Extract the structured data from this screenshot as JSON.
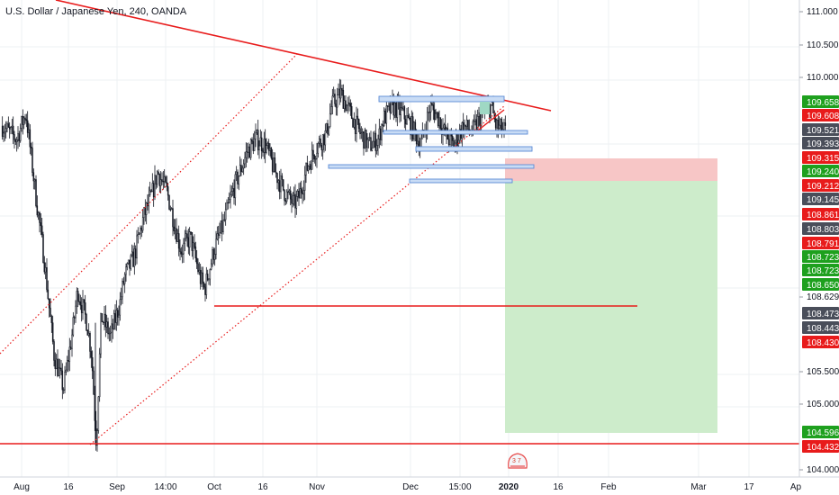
{
  "symbol_title": "U.S. Dollar / Japanese Yen, 240, OANDA",
  "logo_text": "3 7",
  "colors": {
    "bull": "#ffffff",
    "bear": "#131722",
    "wick": "#131722",
    "trend_red": "#e81b1b",
    "range_box": "#5b8bd6",
    "range_box_fill": "#c9dcf5",
    "stop_fill": "#f7c6c6",
    "target_fill": "#cdeccb",
    "badge_green": "#1ea01e",
    "badge_red": "#e81b1b",
    "badge_dark": "#4a4e5a",
    "grid": "#eef0f3"
  },
  "chart_data": {
    "type": "candlestick",
    "instrument": "USD/JPY",
    "timeframe": "240",
    "broker": "OANDA",
    "x_ticks": [
      "Aug",
      "16",
      "Sep",
      "14:00",
      "Oct",
      "16",
      "Nov",
      "Dec",
      "15:00",
      "2020",
      "16",
      "Feb",
      "Mar",
      "17",
      "Ap"
    ],
    "y_ticks": [
      "111.000",
      "110.500",
      "110.000",
      "108.629",
      "105.500",
      "105.000",
      "104.000"
    ],
    "y_range": [
      104.0,
      111.2
    ],
    "price_path": [
      [
        0,
        109.3
      ],
      [
        3,
        109.1
      ],
      [
        5,
        109.5
      ],
      [
        7,
        108.3
      ],
      [
        9,
        107.2
      ],
      [
        11,
        105.8
      ],
      [
        13,
        105.3
      ],
      [
        15,
        106.2
      ],
      [
        16,
        106.8
      ],
      [
        18,
        106.3
      ],
      [
        19,
        105.8
      ],
      [
        20,
        104.43
      ],
      [
        21,
        106.4
      ],
      [
        23,
        106.1
      ],
      [
        25,
        106.6
      ],
      [
        26,
        107.0
      ],
      [
        28,
        107.3
      ],
      [
        30,
        107.9
      ],
      [
        32,
        108.3
      ],
      [
        33,
        108.6
      ],
      [
        35,
        108.3
      ],
      [
        36,
        108.0
      ],
      [
        38,
        107.4
      ],
      [
        40,
        107.6
      ],
      [
        42,
        107.0
      ],
      [
        43,
        106.8
      ],
      [
        45,
        107.4
      ],
      [
        47,
        107.8
      ],
      [
        49,
        108.3
      ],
      [
        51,
        108.7
      ],
      [
        52,
        108.9
      ],
      [
        54,
        109.1
      ],
      [
        56,
        109.0
      ],
      [
        58,
        108.6
      ],
      [
        60,
        108.3
      ],
      [
        62,
        108.1
      ],
      [
        63,
        108.2
      ],
      [
        65,
        108.7
      ],
      [
        67,
        109.0
      ],
      [
        69,
        109.2
      ],
      [
        70,
        109.6
      ],
      [
        72,
        109.8
      ],
      [
        74,
        109.5
      ],
      [
        76,
        109.2
      ],
      [
        78,
        109.0
      ],
      [
        80,
        109.1
      ],
      [
        81,
        109.4
      ],
      [
        83,
        109.6
      ],
      [
        85,
        109.5
      ],
      [
        87,
        109.3
      ],
      [
        89,
        109.0
      ],
      [
        91,
        109.6
      ],
      [
        93,
        109.4
      ],
      [
        94,
        109.2
      ],
      [
        96,
        109.0
      ],
      [
        98,
        109.3
      ],
      [
        100,
        109.2
      ],
      [
        102,
        109.5
      ],
      [
        104,
        109.6
      ],
      [
        105,
        109.3
      ],
      [
        107,
        109.212
      ]
    ],
    "series": [
      {
        "name": "USD/JPY",
        "style": "candles"
      }
    ],
    "price_labels": [
      {
        "value": "109.658",
        "color": "badge_green"
      },
      {
        "value": "109.608",
        "color": "badge_red"
      },
      {
        "value": "109.521",
        "color": "badge_dark"
      },
      {
        "value": "109.393",
        "color": "badge_dark"
      },
      {
        "value": "109.315",
        "color": "badge_red"
      },
      {
        "value": "109.240",
        "color": "badge_green"
      },
      {
        "value": "109.212",
        "color": "badge_red"
      },
      {
        "value": "109.145",
        "color": "badge_dark"
      },
      {
        "value": "108.861",
        "color": "badge_red"
      },
      {
        "value": "108.803",
        "color": "badge_dark"
      },
      {
        "value": "108.791",
        "color": "badge_red"
      },
      {
        "value": "108.723",
        "color": "badge_green"
      },
      {
        "value": "108.723",
        "color": "badge_green"
      },
      {
        "value": "108.650",
        "color": "badge_green"
      },
      {
        "value": "108.473",
        "color": "badge_dark"
      },
      {
        "value": "108.443",
        "color": "badge_dark"
      },
      {
        "value": "108.430",
        "color": "badge_red"
      },
      {
        "value": "104.596",
        "color": "badge_green"
      },
      {
        "value": "104.432",
        "color": "badge_red"
      }
    ],
    "drawings": {
      "descending_trendline": "solid red",
      "ascending_channel": "dotted red",
      "support_line_value": 108.629,
      "bottom_line_value": 104.432,
      "short_position": {
        "entry": 109.212,
        "stop": 109.315,
        "target": 104.596
      }
    }
  }
}
